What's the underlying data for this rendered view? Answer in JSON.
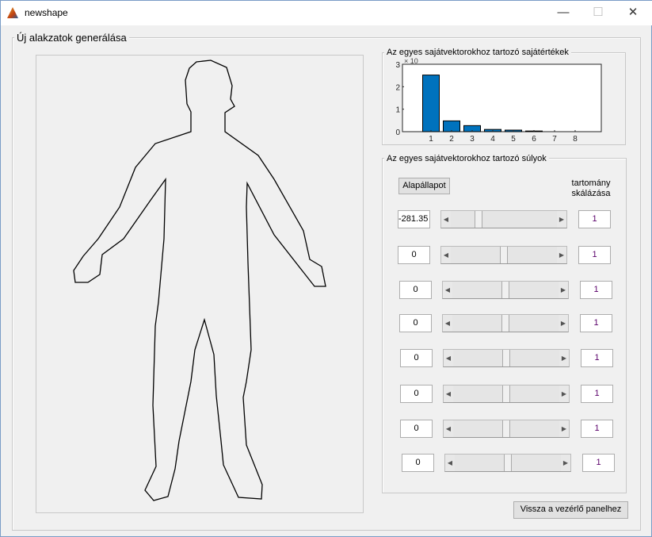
{
  "window": {
    "title": "newshape",
    "icon": "matlab-icon",
    "controls": [
      "minimize",
      "maximize",
      "close"
    ]
  },
  "main_panel": {
    "title": "Új alakzatok generálása"
  },
  "eigen_panel": {
    "title": "Az egyes sajátvektorokhoz tartozó sajátértékek"
  },
  "weights_panel": {
    "title": "Az egyes sajátvektorokhoz tartozó súlyok",
    "reset_label": "Alapállapot",
    "scale_header_1": "tartomány",
    "scale_header_2": "skálázása",
    "rows": [
      {
        "value": "-281.35",
        "slider": 0.24,
        "scale": "1"
      },
      {
        "value": "0",
        "slider": 0.5,
        "scale": "1"
      },
      {
        "value": "0",
        "slider": 0.5,
        "scale": "1"
      },
      {
        "value": "0",
        "slider": 0.5,
        "scale": "1"
      },
      {
        "value": "0",
        "slider": 0.5,
        "scale": "1"
      },
      {
        "value": "0",
        "slider": 0.5,
        "scale": "1"
      },
      {
        "value": "0",
        "slider": 0.5,
        "scale": "1"
      },
      {
        "value": "0",
        "slider": 0.5,
        "scale": "1"
      }
    ]
  },
  "back_button": "Vissza a vezérlő panelhez",
  "chart_data": {
    "type": "bar",
    "categories": [
      "1",
      "2",
      "3",
      "4",
      "5",
      "6",
      "7",
      "8"
    ],
    "values": [
      2.52,
      0.48,
      0.27,
      0.1,
      0.07,
      0.03,
      0,
      0
    ],
    "ylim": [
      0,
      3
    ],
    "yticks": [
      "0",
      "1",
      "2",
      "3"
    ],
    "exponent_label": "× 10",
    "bar_color": "#0072bd"
  }
}
